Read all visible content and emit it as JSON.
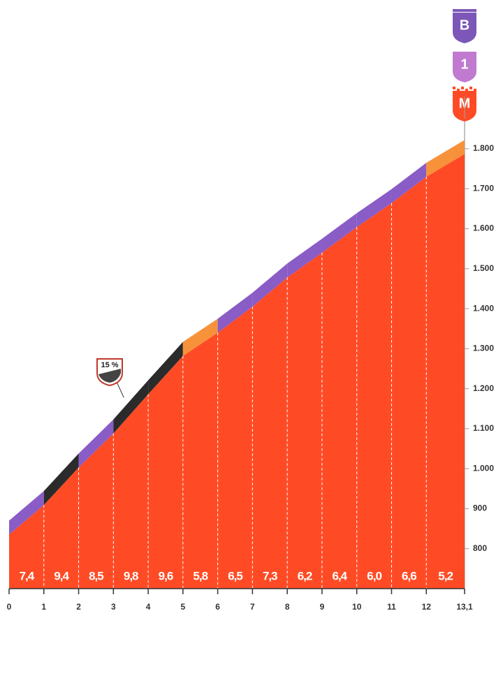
{
  "chart_data": {
    "type": "area",
    "x": [
      0,
      1,
      2,
      3,
      4,
      5,
      6,
      7,
      8,
      9,
      10,
      11,
      12,
      13.1
    ],
    "values": [
      835,
      909,
      1003,
      1088,
      1186,
      1282,
      1340,
      1405,
      1478,
      1540,
      1604,
      1664,
      1730,
      1787
    ],
    "color": "#ff4b25",
    "gradients": {
      "values": [
        7.4,
        9.4,
        8.5,
        9.8,
        9.6,
        5.8,
        6.5,
        7.3,
        6.2,
        6.4,
        6.0,
        6.6,
        5.2
      ],
      "value_labels": [
        "7,4",
        "9,4",
        "8,5",
        "9,8",
        "9,6",
        "5,8",
        "6,5",
        "7,3",
        "6,2",
        "6,4",
        "6,0",
        "6,6",
        "5,2"
      ],
      "colors": [
        "#8a5cc6",
        "#2b2b2b",
        "#8a5cc6",
        "#2b2b2b",
        "#2b2b2b",
        "#f7923a",
        "#8a5cc6",
        "#8a5cc6",
        "#8a5cc6",
        "#8a5cc6",
        "#8a5cc6",
        "#8a5cc6",
        "#f7923a"
      ]
    },
    "xlim": [
      0,
      13.1
    ],
    "xticks": [
      0,
      1,
      2,
      3,
      4,
      5,
      6,
      7,
      8,
      9,
      10,
      11,
      12,
      {
        "value": 13.1,
        "label": "13,1"
      }
    ],
    "ylim": [
      700,
      1800
    ],
    "yticks": [
      800,
      900,
      {
        "value": 1000,
        "label": "1.000"
      },
      {
        "value": 1100,
        "label": "1.100"
      },
      {
        "value": 1200,
        "label": "1.200"
      },
      {
        "value": 1300,
        "label": "1.300"
      },
      {
        "value": 1400,
        "label": "1.400"
      },
      {
        "value": 1500,
        "label": "1.500"
      },
      {
        "value": 1600,
        "label": "1.600"
      },
      {
        "value": 1700,
        "label": "1.700"
      },
      {
        "value": 1800,
        "label": "1.800"
      }
    ],
    "annotations": [
      {
        "text": "15 %",
        "x": 3.5
      }
    ],
    "badges": [
      {
        "label": "B",
        "color": "#7c57b8"
      },
      {
        "label": "1",
        "color": "#c07ad0"
      },
      {
        "label": "M",
        "color": "#ff4b25"
      }
    ]
  }
}
